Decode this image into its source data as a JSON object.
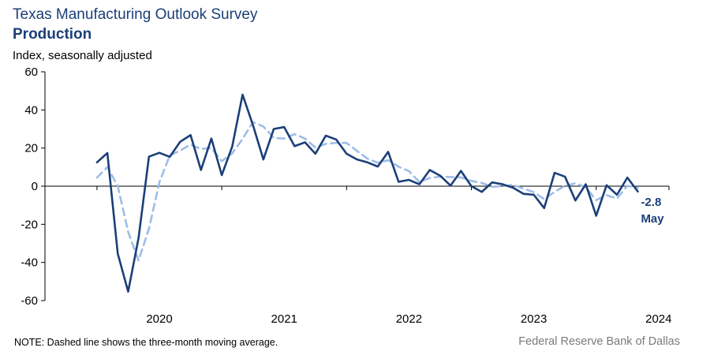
{
  "header": {
    "title": "Texas  Manufacturing Outlook Survey",
    "subtitle": "Production",
    "units": "Index, seasonally adjusted"
  },
  "footer": {
    "note": "NOTE: Dashed line shows the three-month  moving average.",
    "source": "Federal Reserve Bank of Dallas"
  },
  "colors": {
    "actual": "#1b3f78",
    "average": "#9dbde6",
    "axis": "#000000"
  },
  "chart_data": {
    "type": "line",
    "title": "Texas  Manufacturing Outlook Survey",
    "subtitle": "Production",
    "ylabel": "Index, seasonally adjusted",
    "ylim": [
      -60,
      60
    ],
    "yticks": [
      60,
      40,
      20,
      0,
      -20,
      -40,
      -60
    ],
    "xlim": [
      "2019-08",
      "2024-08"
    ],
    "xticks": [
      {
        "label": "2020",
        "x": "2020-07"
      },
      {
        "label": "2021",
        "x": "2021-07"
      },
      {
        "label": "2022",
        "x": "2022-07"
      },
      {
        "label": "2023",
        "x": "2023-07"
      },
      {
        "label": "2024",
        "x": "2024-07"
      }
    ],
    "grid": false,
    "annotation": {
      "value": "-2.8",
      "label": "May"
    },
    "series": [
      {
        "style": "solid",
        "x": [
          "2020-01",
          "2020-02",
          "2020-03",
          "2020-04",
          "2020-05",
          "2020-06",
          "2020-07",
          "2020-08",
          "2020-09",
          "2020-10",
          "2020-11",
          "2020-12",
          "2021-01",
          "2021-02",
          "2021-03",
          "2021-04",
          "2021-05",
          "2021-06",
          "2021-07",
          "2021-08",
          "2021-09",
          "2021-10",
          "2021-11",
          "2021-12",
          "2022-01",
          "2022-02",
          "2022-03",
          "2022-04",
          "2022-05",
          "2022-06",
          "2022-07",
          "2022-08",
          "2022-09",
          "2022-10",
          "2022-11",
          "2022-12",
          "2023-01",
          "2023-02",
          "2023-03",
          "2023-04",
          "2023-05",
          "2023-06",
          "2023-07",
          "2023-08",
          "2023-09",
          "2023-10",
          "2023-11",
          "2023-12",
          "2024-01",
          "2024-02",
          "2024-03",
          "2024-04",
          "2024-05"
        ],
        "values": [
          12.5,
          17.4,
          -35.4,
          -55.3,
          -27.1,
          15.5,
          17.5,
          15.4,
          23.3,
          26.8,
          8.5,
          25.0,
          5.8,
          20.7,
          48.0,
          32.0,
          14.0,
          30.0,
          31.0,
          21.0,
          23.0,
          17.0,
          26.5,
          24.5,
          17.0,
          14.0,
          12.5,
          10.3,
          18.0,
          2.3,
          3.3,
          1.0,
          8.5,
          5.5,
          0.3,
          8.0,
          0.0,
          -3.0,
          2.0,
          1.0,
          -0.8,
          -4.0,
          -4.5,
          -11.5,
          7.0,
          5.0,
          -7.5,
          1.0,
          -15.5,
          0.5,
          -4.5,
          4.5,
          -2.8
        ]
      },
      {
        "style": "dashed",
        "x": [
          "2020-01",
          "2020-02",
          "2020-03",
          "2020-04",
          "2020-05",
          "2020-06",
          "2020-07",
          "2020-08",
          "2020-09",
          "2020-10",
          "2020-11",
          "2020-12",
          "2021-01",
          "2021-02",
          "2021-03",
          "2021-04",
          "2021-05",
          "2021-06",
          "2021-07",
          "2021-08",
          "2021-09",
          "2021-10",
          "2021-11",
          "2021-12",
          "2022-01",
          "2022-02",
          "2022-03",
          "2022-04",
          "2022-05",
          "2022-06",
          "2022-07",
          "2022-08",
          "2022-09",
          "2022-10",
          "2022-11",
          "2022-12",
          "2023-01",
          "2023-02",
          "2023-03",
          "2023-04",
          "2023-05",
          "2023-06",
          "2023-07",
          "2023-08",
          "2023-09",
          "2023-10",
          "2023-11",
          "2023-12",
          "2024-01",
          "2024-02",
          "2024-03",
          "2024-04",
          "2024-05"
        ],
        "values": [
          4.5,
          10.0,
          0.0,
          -24.0,
          -39.0,
          -22.3,
          2.0,
          16.1,
          18.7,
          21.8,
          19.5,
          20.1,
          13.1,
          17.2,
          24.8,
          33.6,
          31.3,
          25.3,
          25.0,
          27.3,
          25.0,
          20.3,
          22.2,
          22.7,
          22.7,
          18.5,
          14.5,
          12.3,
          13.6,
          10.2,
          7.9,
          2.2,
          4.3,
          5.0,
          4.8,
          4.6,
          2.8,
          1.7,
          -0.3,
          0.0,
          0.7,
          -1.3,
          -3.1,
          -6.8,
          -3.0,
          0.2,
          1.5,
          -0.5,
          -7.3,
          -4.7,
          -6.5,
          0.2,
          -0.9
        ]
      }
    ]
  }
}
